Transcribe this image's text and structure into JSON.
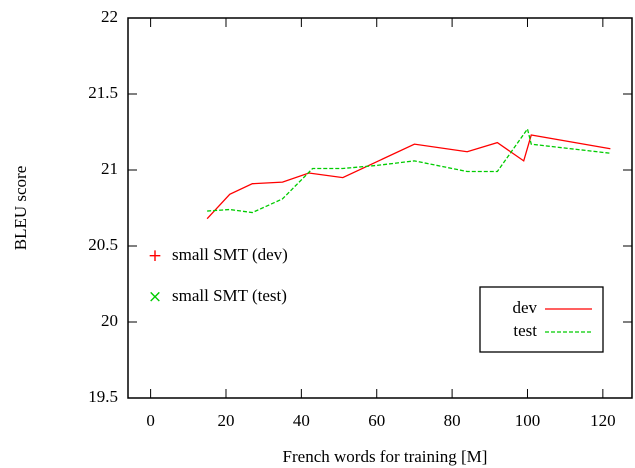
{
  "chart_data": {
    "type": "line",
    "xlabel": "French words for training [M]",
    "ylabel": "BLEU score",
    "xlim": [
      -6,
      128
    ],
    "xticks": [
      0,
      20,
      40,
      60,
      80,
      100,
      120
    ],
    "ylim": [
      19.5,
      22
    ],
    "yticks": [
      19.5,
      20,
      20.5,
      21,
      21.5,
      22
    ],
    "legend": "lower right",
    "series": [
      {
        "name": "dev",
        "color": "#ff0000",
        "dash": false,
        "x": [
          15,
          21,
          27,
          35,
          42,
          51,
          70,
          84,
          92,
          99,
          101,
          122
        ],
        "values": [
          20.68,
          20.84,
          20.91,
          20.92,
          20.98,
          20.95,
          21.17,
          21.12,
          21.18,
          21.06,
          21.23,
          21.14
        ]
      },
      {
        "name": "test",
        "color": "#00cc00",
        "dash": true,
        "x": [
          15,
          21,
          27,
          35,
          43,
          51,
          60,
          70,
          84,
          92,
          100,
          101,
          122
        ],
        "values": [
          20.73,
          20.74,
          20.72,
          20.81,
          21.01,
          21.01,
          21.03,
          21.06,
          20.99,
          20.99,
          21.27,
          21.17,
          21.11
        ]
      }
    ],
    "annotations": [
      {
        "text": "small SMT (dev)",
        "marker": "+",
        "color": "#ff0000"
      },
      {
        "text": "small SMT (test)",
        "marker": "×",
        "color": "#00cc00"
      }
    ]
  }
}
